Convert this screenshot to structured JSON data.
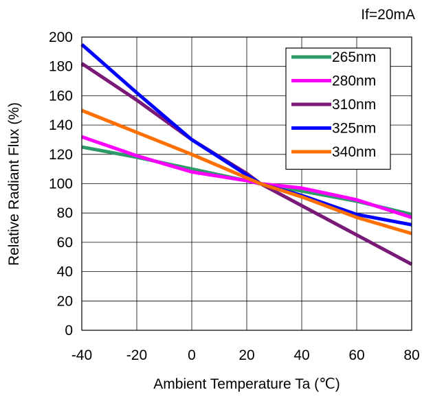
{
  "chart_data": {
    "type": "line",
    "condition_label": "If=20mA",
    "xlabel": "Ambient Temperature Ta (℃)",
    "ylabel": "Relative Radiant Flux (%)",
    "xlim": [
      -40,
      80
    ],
    "ylim": [
      0,
      200
    ],
    "xticks": [
      -40,
      -20,
      0,
      20,
      40,
      60,
      80
    ],
    "yticks": [
      0,
      20,
      40,
      60,
      80,
      100,
      120,
      140,
      160,
      180,
      200
    ],
    "grid": true,
    "legend_position": "top-right",
    "series": [
      {
        "name": "265nm",
        "color": "#2e9a6a",
        "x": [
          -40,
          -20,
          0,
          20,
          25,
          40,
          60,
          80
        ],
        "y": [
          125,
          118,
          110,
          102,
          100,
          95,
          88,
          79
        ]
      },
      {
        "name": "280nm",
        "color": "#ff00ff",
        "x": [
          -40,
          -20,
          0,
          20,
          25,
          40,
          60,
          80
        ],
        "y": [
          132,
          119,
          108,
          102,
          100,
          97,
          89,
          77
        ]
      },
      {
        "name": "310nm",
        "color": "#7a1a78",
        "x": [
          -40,
          -20,
          0,
          20,
          25,
          40,
          60,
          80
        ],
        "y": [
          182,
          157,
          130,
          107,
          100,
          85,
          65,
          45
        ]
      },
      {
        "name": "325nm",
        "color": "#0000ff",
        "x": [
          -40,
          -20,
          0,
          20,
          25,
          40,
          60,
          80
        ],
        "y": [
          195,
          162,
          130,
          106,
          100,
          92,
          79,
          72
        ]
      },
      {
        "name": "340nm",
        "color": "#ff7000",
        "x": [
          -40,
          -20,
          0,
          20,
          25,
          40,
          60,
          80
        ],
        "y": [
          150,
          135,
          120,
          104,
          100,
          91,
          77,
          66
        ]
      }
    ]
  }
}
